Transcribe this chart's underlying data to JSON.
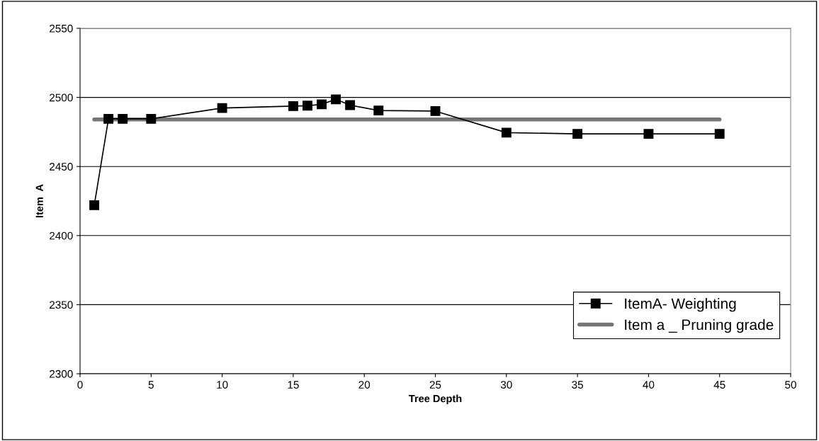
{
  "chart_data": {
    "type": "line",
    "xlabel": "Tree Depth",
    "ylabel": "Item  A",
    "xlim": [
      0,
      50
    ],
    "xticks": [
      0,
      5,
      10,
      15,
      20,
      25,
      30,
      35,
      40,
      45,
      50
    ],
    "ylim": [
      2300,
      2550
    ],
    "yticks": [
      2300,
      2350,
      2400,
      2450,
      2500,
      2550
    ],
    "grid": "y",
    "legend": "bottom right",
    "series": [
      {
        "name": "ItemA- Weighting",
        "color": "#000000",
        "marker": "square",
        "x": [
          1,
          2,
          3,
          5,
          10,
          15,
          16,
          17,
          18,
          19,
          21,
          25,
          30,
          35,
          40,
          45
        ],
        "values": [
          2422,
          2484.5,
          2484.5,
          2484.5,
          2492.3,
          2493.7,
          2494,
          2495,
          2498.6,
          2494.4,
          2490.5,
          2490.1,
          2474.5,
          2473.6,
          2473.6,
          2473.6
        ]
      },
      {
        "name": "Item a _ Pruning grade",
        "color": "#767676",
        "marker": "none",
        "x": [
          1,
          45
        ],
        "values": [
          2484,
          2484
        ]
      }
    ]
  }
}
